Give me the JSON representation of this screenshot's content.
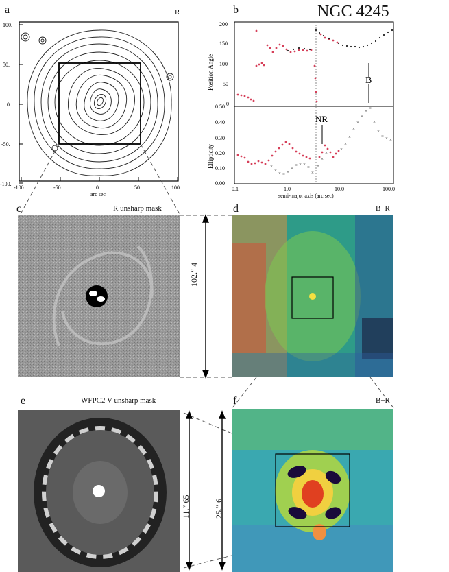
{
  "figure": {
    "galaxy_name": "NGC 4245",
    "panels": {
      "a": {
        "label": "a",
        "band": "R",
        "xlabel": "arc sec",
        "xticks": [
          "-100.",
          "-50.",
          "0.",
          "50.",
          "100."
        ],
        "yticks": [
          "100.",
          "50.",
          "0.",
          "-50.",
          "-100."
        ]
      },
      "b": {
        "label": "b",
        "xlabel": "semi-major axis (arc sec)",
        "xticks": [
          "0.1",
          "1.0",
          "10.0",
          "100.0"
        ],
        "top_ylabel": "Position Angle",
        "top_yticks": [
          "200",
          "150",
          "100",
          "50",
          "0"
        ],
        "bottom_ylabel": "Ellipticity",
        "bottom_yticks": [
          "0.50",
          "0.40",
          "0.30",
          "0.20",
          "0.10",
          "0.00"
        ],
        "annot_B": "B",
        "annot_NR": "NR"
      },
      "c": {
        "label": "c",
        "title": "R unsharp mask"
      },
      "d": {
        "label": "d",
        "title": "B−R",
        "scale_label": "102.″ 4"
      },
      "e": {
        "label": "e",
        "title": "WFPC2 V unsharp mask",
        "scale_label": "11.″ 65"
      },
      "f": {
        "label": "f",
        "title": "B−R",
        "scale_label": "25.″ 6"
      }
    }
  },
  "colors": {
    "red_points": "#d6405a",
    "black_points": "#222222",
    "dashed_line": "#555555"
  }
}
